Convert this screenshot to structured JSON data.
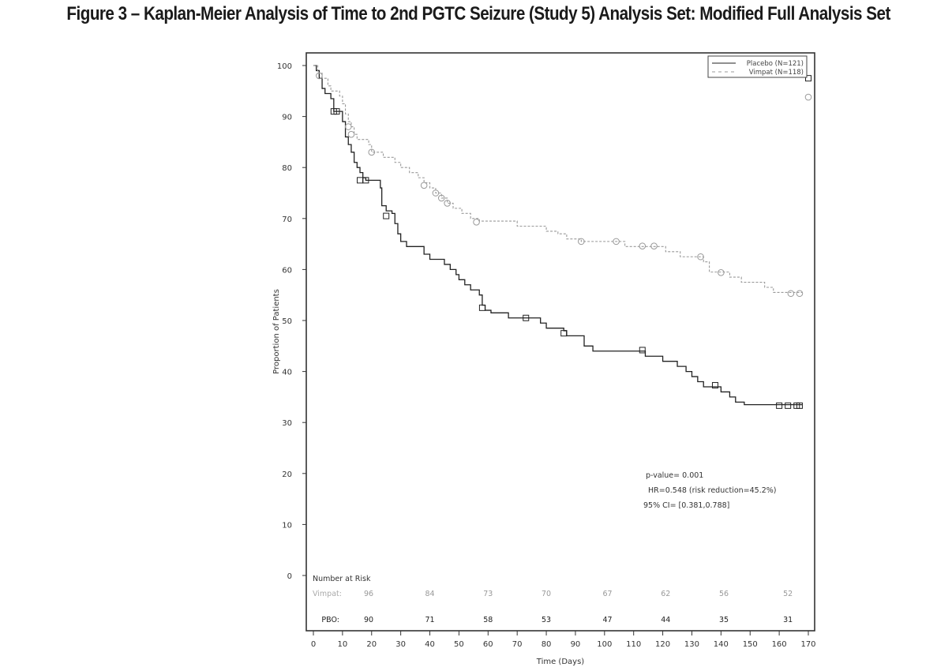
{
  "figure_title": "Figure 3 – Kaplan-Meier Analysis of Time to 2nd PGTC Seizure (Study 5) Analysis Set: Modified Full Analysis Set",
  "chart_data": {
    "type": "line",
    "subtype": "kaplan-meier step",
    "title": "Figure 3 – Kaplan-Meier Analysis of Time to 2nd PGTC Seizure (Study 5) Analysis Set: Modified Full Analysis Set",
    "xlabel": "Time (Days)",
    "ylabel": "Proportion of Patients",
    "xlim": [
      0,
      170
    ],
    "ylim": [
      0,
      100
    ],
    "x_ticks": [
      0,
      10,
      20,
      30,
      40,
      50,
      60,
      70,
      80,
      90,
      100,
      110,
      120,
      130,
      140,
      150,
      160,
      170
    ],
    "y_ticks": [
      0,
      10,
      20,
      30,
      40,
      50,
      60,
      70,
      80,
      90,
      100
    ],
    "grid": false,
    "legend_position": "top-right",
    "series": [
      {
        "name": "Placebo (N=121)",
        "style": "solid",
        "color": "#222222",
        "censor_marker": "square",
        "steps": [
          [
            0,
            100
          ],
          [
            1,
            99
          ],
          [
            2,
            97.5
          ],
          [
            3,
            95.5
          ],
          [
            4,
            94.5
          ],
          [
            6,
            93.5
          ],
          [
            7,
            91
          ],
          [
            9,
            91
          ],
          [
            10,
            89
          ],
          [
            11,
            86
          ],
          [
            12,
            84.5
          ],
          [
            13,
            83
          ],
          [
            14,
            81
          ],
          [
            15,
            80
          ],
          [
            16,
            79
          ],
          [
            17,
            78
          ],
          [
            18,
            77.5
          ],
          [
            22,
            77.5
          ],
          [
            23,
            76
          ],
          [
            23.5,
            72.5
          ],
          [
            25,
            71.5
          ],
          [
            27,
            71
          ],
          [
            28,
            69
          ],
          [
            29,
            67
          ],
          [
            30,
            65.5
          ],
          [
            32,
            64.5
          ],
          [
            38,
            63
          ],
          [
            40,
            62
          ],
          [
            45,
            61
          ],
          [
            47,
            60
          ],
          [
            49,
            59
          ],
          [
            50,
            58
          ],
          [
            52,
            57
          ],
          [
            54,
            56
          ],
          [
            57,
            55
          ],
          [
            58,
            53
          ],
          [
            59,
            52
          ],
          [
            61,
            51.5
          ],
          [
            66,
            51.5
          ],
          [
            67,
            50.5
          ],
          [
            75,
            50.5
          ],
          [
            78,
            49.5
          ],
          [
            80,
            48.5
          ],
          [
            86,
            48
          ],
          [
            87,
            47
          ],
          [
            93,
            45
          ],
          [
            96,
            44
          ],
          [
            113,
            44
          ],
          [
            114,
            43
          ],
          [
            120,
            42
          ],
          [
            125,
            41
          ],
          [
            128,
            40
          ],
          [
            130,
            39
          ],
          [
            132,
            38
          ],
          [
            134,
            37
          ],
          [
            138,
            37
          ],
          [
            140,
            36
          ],
          [
            143,
            35
          ],
          [
            145,
            34
          ],
          [
            148,
            33.5
          ],
          [
            163,
            33.5
          ],
          [
            168,
            33.5
          ]
        ],
        "censored": [
          [
            7,
            91
          ],
          [
            8,
            91
          ],
          [
            16,
            77.5
          ],
          [
            18,
            77.5
          ],
          [
            25,
            70.5
          ],
          [
            58,
            52.5
          ],
          [
            73,
            50.5
          ],
          [
            86,
            47.5
          ],
          [
            113,
            44.2
          ],
          [
            138,
            37.3
          ],
          [
            160,
            33.3
          ],
          [
            163,
            33.3
          ],
          [
            166,
            33.3
          ],
          [
            167,
            33.3
          ],
          [
            170,
            97.5
          ]
        ]
      },
      {
        "name": "Vimpat (N=118)",
        "style": "dashed",
        "color": "#999999",
        "censor_marker": "circle",
        "steps": [
          [
            0,
            100
          ],
          [
            1.5,
            98.5
          ],
          [
            3,
            97.5
          ],
          [
            5,
            96
          ],
          [
            6,
            95
          ],
          [
            9,
            94
          ],
          [
            10,
            92.5
          ],
          [
            11,
            90.5
          ],
          [
            12,
            89
          ],
          [
            13,
            88
          ],
          [
            14,
            86.5
          ],
          [
            15,
            85.5
          ],
          [
            18,
            85.5
          ],
          [
            19,
            84.5
          ],
          [
            20,
            83
          ],
          [
            24,
            82
          ],
          [
            28,
            81
          ],
          [
            30,
            80
          ],
          [
            33,
            79
          ],
          [
            36,
            78
          ],
          [
            38,
            77
          ],
          [
            40,
            76
          ],
          [
            42,
            75
          ],
          [
            44,
            74
          ],
          [
            46,
            73
          ],
          [
            48,
            72
          ],
          [
            51,
            71
          ],
          [
            54,
            70
          ],
          [
            57,
            69.5
          ],
          [
            68,
            69.5
          ],
          [
            70,
            68.5
          ],
          [
            77,
            68.5
          ],
          [
            80,
            67.5
          ],
          [
            84,
            67
          ],
          [
            87,
            66
          ],
          [
            92,
            65.5
          ],
          [
            104,
            65.5
          ],
          [
            107,
            64.5
          ],
          [
            119,
            64.5
          ],
          [
            121,
            63.5
          ],
          [
            126,
            62.5
          ],
          [
            132,
            62.5
          ],
          [
            134,
            61.5
          ],
          [
            136,
            59.5
          ],
          [
            142,
            59.5
          ],
          [
            143,
            58.5
          ],
          [
            147,
            57.5
          ],
          [
            155,
            56.5
          ],
          [
            158,
            55.5
          ],
          [
            165,
            55.5
          ],
          [
            168,
            55.5
          ]
        ],
        "censored": [
          [
            2,
            98
          ],
          [
            12,
            88
          ],
          [
            13,
            86.5
          ],
          [
            20,
            83
          ],
          [
            38,
            76.5
          ],
          [
            42,
            75
          ],
          [
            44,
            74
          ],
          [
            46,
            73
          ],
          [
            56,
            69.3
          ],
          [
            92,
            65.5
          ],
          [
            104,
            65.5
          ],
          [
            113,
            64.6
          ],
          [
            117,
            64.6
          ],
          [
            133,
            62.5
          ],
          [
            140,
            59.4
          ],
          [
            164,
            55.3
          ],
          [
            167,
            55.3
          ],
          [
            170,
            93.8
          ]
        ]
      }
    ],
    "annotations": [
      "p-value= 0.001",
      "HR=0.548 (risk reduction=45.2%)",
      "95% CI= [0.381,0.788]"
    ],
    "number_at_risk": {
      "header": "Number at Risk",
      "rows": [
        {
          "label": "Vimpat:",
          "color": "#999999",
          "values": [
            96,
            84,
            73,
            70,
            67,
            62,
            56,
            52
          ]
        },
        {
          "label": "PBO:",
          "color": "#222222",
          "values": [
            90,
            71,
            58,
            53,
            47,
            44,
            35,
            31
          ]
        }
      ],
      "at_days": [
        19,
        40,
        60,
        80,
        101,
        121,
        141,
        163
      ]
    }
  }
}
